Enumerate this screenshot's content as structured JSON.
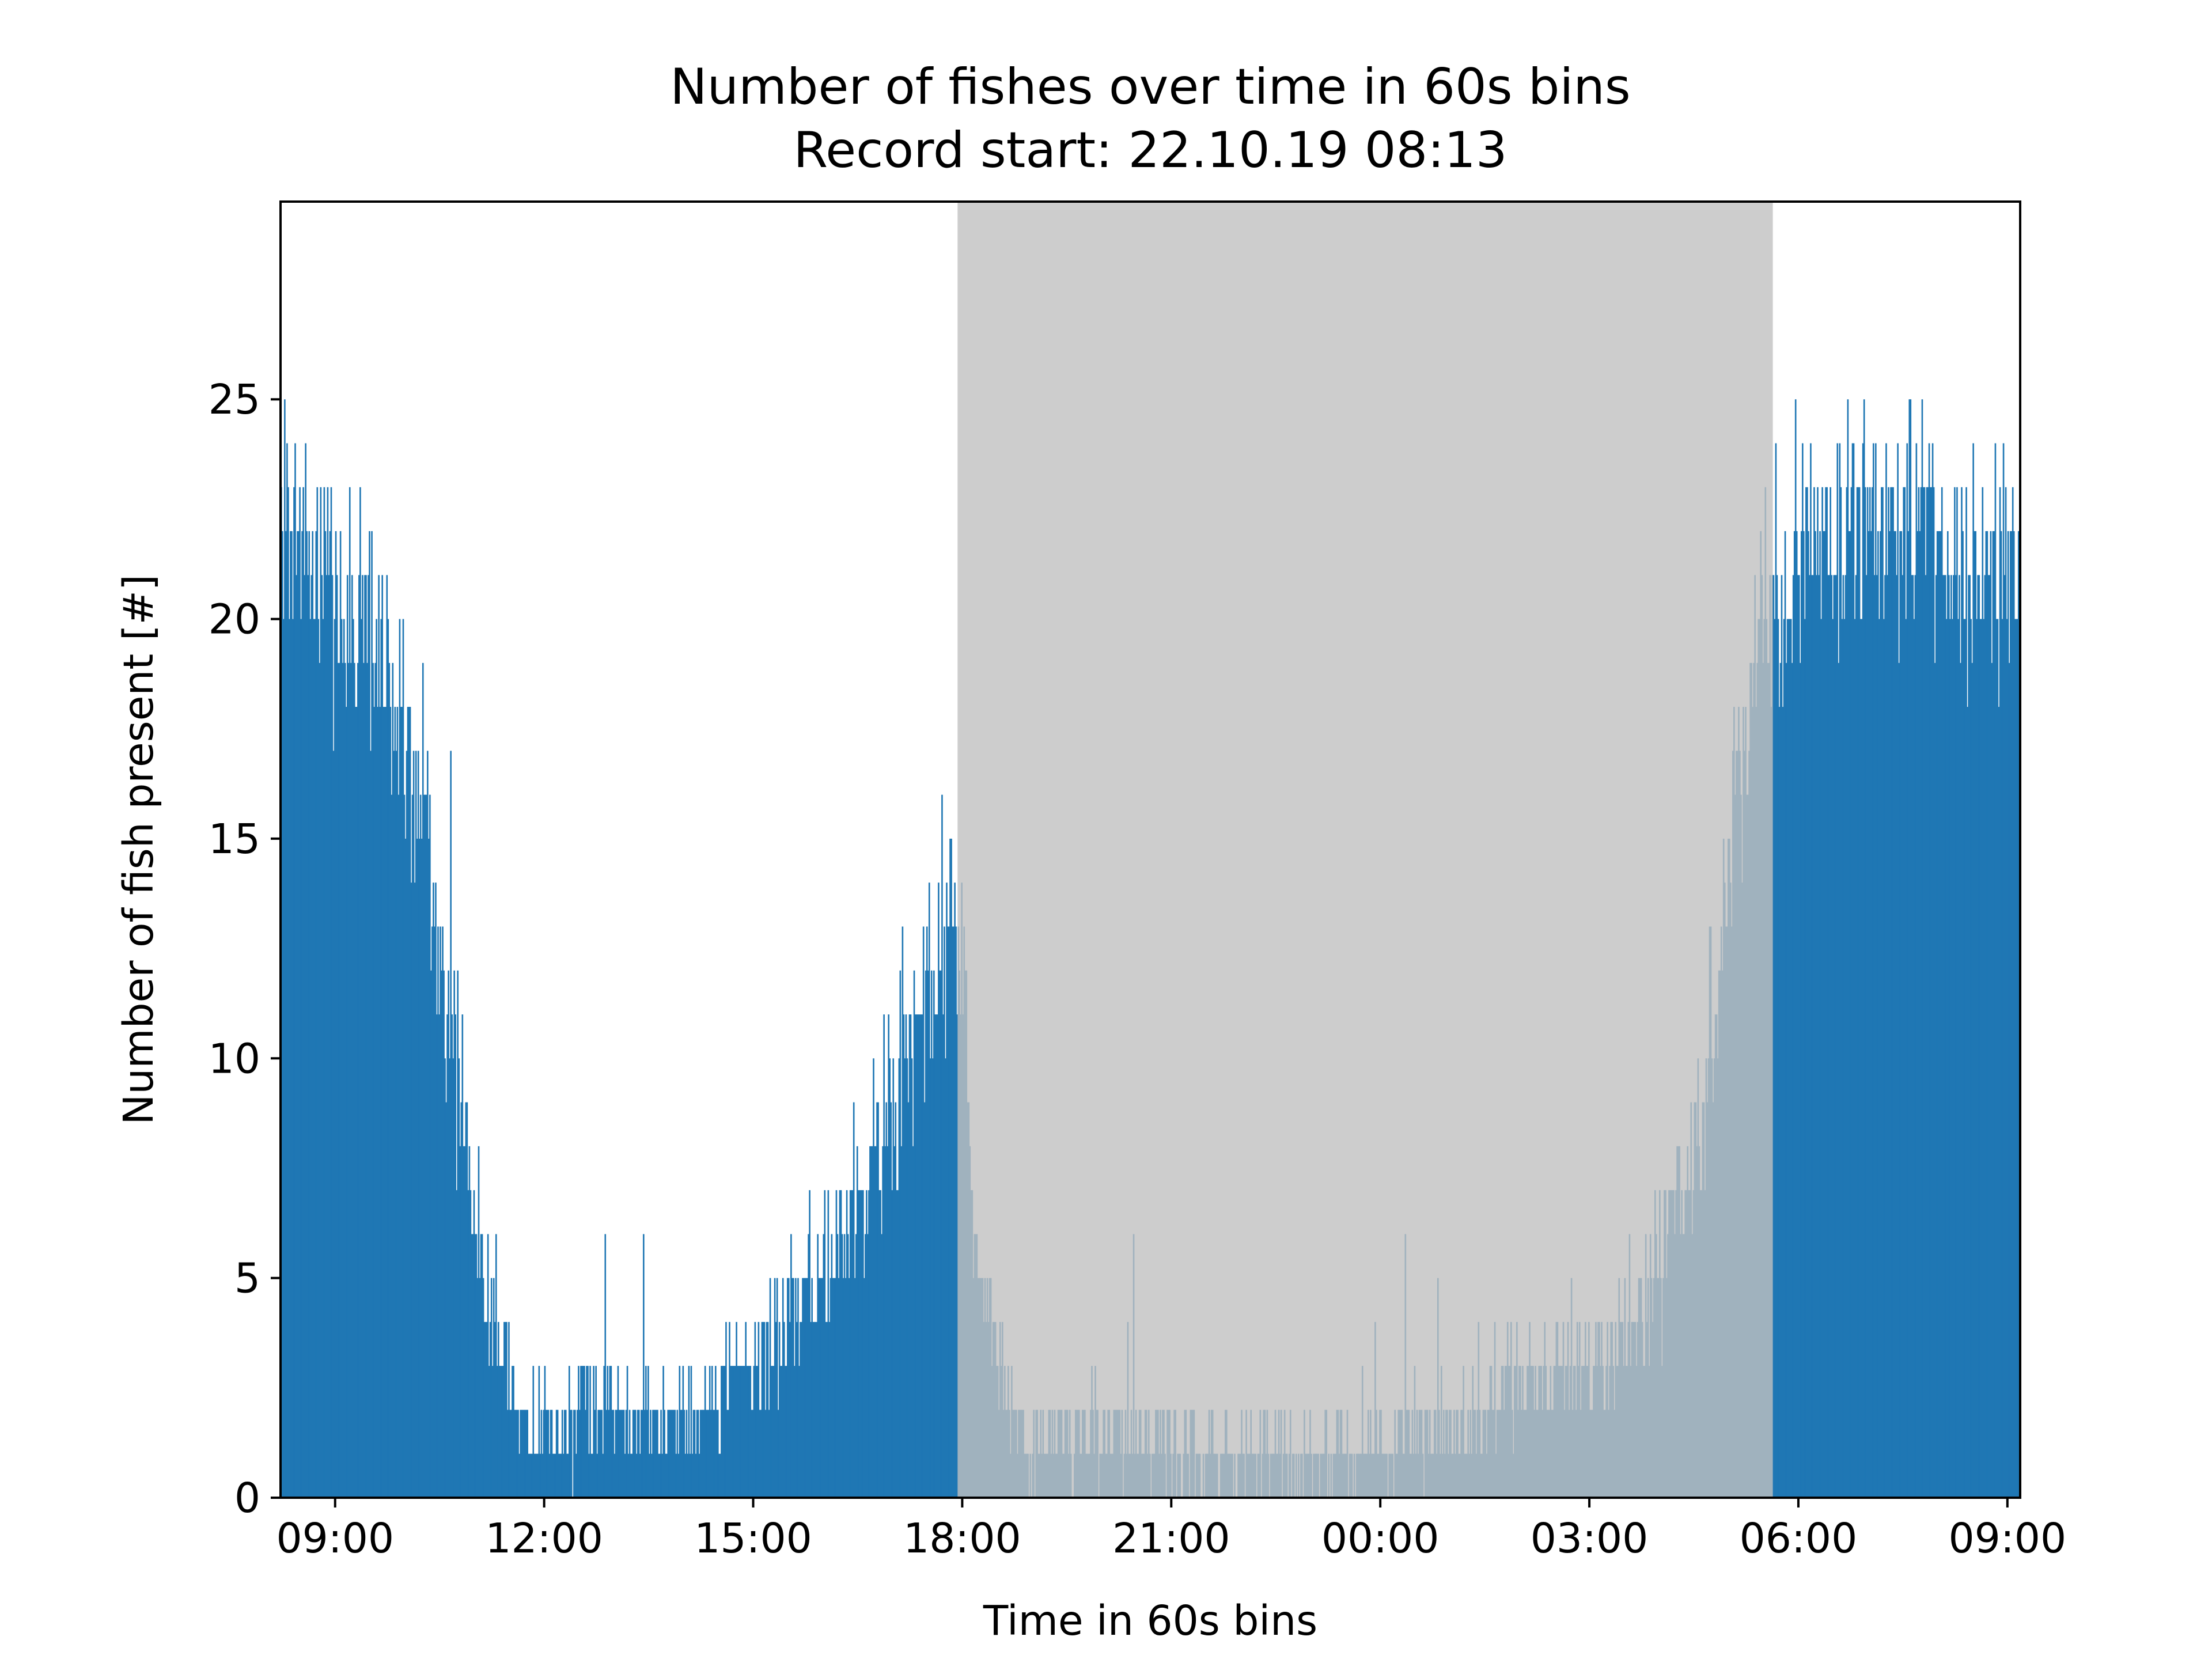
{
  "chart_data": {
    "type": "bar",
    "title": "Number of fishes over time in 60s bins",
    "subtitle": "Record start: 22.10.19 08:13",
    "xlabel": "Time in 60s bins",
    "ylabel": "Number of fish present [#]",
    "x_unit": "minutes since record start (08:13), 60s bins",
    "xlim": [
      0,
      1498
    ],
    "ylim": [
      0,
      29.5
    ],
    "grid": false,
    "legend": "none",
    "bar_color": "#1f77b4",
    "night_band": {
      "x_start": 583,
      "x_end": 1285,
      "color": "#c0c0c0",
      "opacity": 0.8
    },
    "x_ticks": [
      {
        "value": 47,
        "label": "09:00"
      },
      {
        "value": 227,
        "label": "12:00"
      },
      {
        "value": 407,
        "label": "15:00"
      },
      {
        "value": 587,
        "label": "18:00"
      },
      {
        "value": 767,
        "label": "21:00"
      },
      {
        "value": 947,
        "label": "00:00"
      },
      {
        "value": 1127,
        "label": "03:00"
      },
      {
        "value": 1307,
        "label": "06:00"
      },
      {
        "value": 1487,
        "label": "09:00"
      }
    ],
    "y_ticks": [
      {
        "value": 0,
        "label": "0"
      },
      {
        "value": 5,
        "label": "5"
      },
      {
        "value": 10,
        "label": "10"
      },
      {
        "value": 15,
        "label": "15"
      },
      {
        "value": 20,
        "label": "20"
      },
      {
        "value": 25,
        "label": "25"
      }
    ],
    "profile": [
      {
        "x": 0,
        "y": 22
      },
      {
        "x": 40,
        "y": 21
      },
      {
        "x": 80,
        "y": 19
      },
      {
        "x": 120,
        "y": 16.5
      },
      {
        "x": 150,
        "y": 10
      },
      {
        "x": 175,
        "y": 5
      },
      {
        "x": 205,
        "y": 2
      },
      {
        "x": 240,
        "y": 1.5
      },
      {
        "x": 280,
        "y": 2.5
      },
      {
        "x": 330,
        "y": 1.5
      },
      {
        "x": 380,
        "y": 2.5
      },
      {
        "x": 440,
        "y": 4
      },
      {
        "x": 500,
        "y": 7
      },
      {
        "x": 550,
        "y": 11
      },
      {
        "x": 583,
        "y": 14
      },
      {
        "x": 600,
        "y": 5
      },
      {
        "x": 640,
        "y": 1.2
      },
      {
        "x": 700,
        "y": 1.5
      },
      {
        "x": 760,
        "y": 1.5
      },
      {
        "x": 800,
        "y": 0.8
      },
      {
        "x": 860,
        "y": 1
      },
      {
        "x": 940,
        "y": 1.2
      },
      {
        "x": 1010,
        "y": 1.5
      },
      {
        "x": 1060,
        "y": 2.5
      },
      {
        "x": 1120,
        "y": 3
      },
      {
        "x": 1170,
        "y": 4
      },
      {
        "x": 1220,
        "y": 8
      },
      {
        "x": 1250,
        "y": 15
      },
      {
        "x": 1270,
        "y": 19
      },
      {
        "x": 1285,
        "y": 21
      },
      {
        "x": 1350,
        "y": 22
      },
      {
        "x": 1420,
        "y": 22
      },
      {
        "x": 1498,
        "y": 21
      }
    ],
    "noise": {
      "amplitude": 3.5,
      "seed": 7
    }
  }
}
